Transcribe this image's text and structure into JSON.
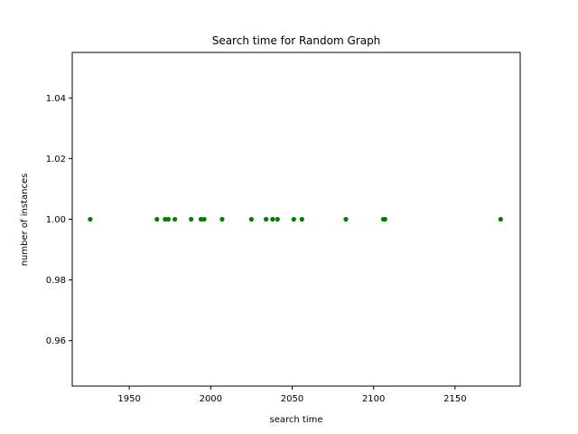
{
  "chart_data": {
    "type": "scatter",
    "title": "Search time for Random Graph",
    "xlabel": "search time",
    "ylabel": "number of instances",
    "xlim": [
      1915,
      2190
    ],
    "ylim": [
      0.945,
      1.055
    ],
    "xticks": [
      1950,
      2000,
      2050,
      2100,
      2150
    ],
    "yticks": [
      0.96,
      0.98,
      1.0,
      1.02,
      1.04
    ],
    "xtick_labels": [
      "1950",
      "2000",
      "2050",
      "2100",
      "2150"
    ],
    "ytick_labels": [
      "0.96",
      "0.98",
      "1.00",
      "1.02",
      "1.04"
    ],
    "grid": false,
    "marker_color": "#008000",
    "series": [
      {
        "x": [
          1926,
          1967,
          1972,
          1974,
          1978,
          1988,
          1994,
          1996,
          2007,
          2025,
          2034,
          2038,
          2041,
          2051,
          2056,
          2083,
          2106,
          2107,
          2178
        ],
        "y": [
          1,
          1,
          1,
          1,
          1,
          1,
          1,
          1,
          1,
          1,
          1,
          1,
          1,
          1,
          1,
          1,
          1,
          1,
          1
        ]
      }
    ]
  }
}
